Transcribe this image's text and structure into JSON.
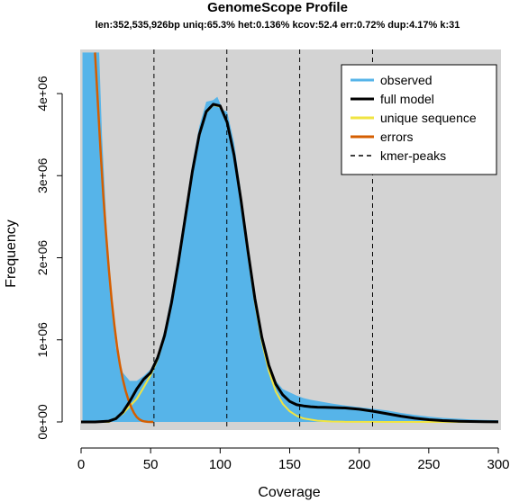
{
  "chart_data": {
    "type": "area",
    "title": "GenomeScope Profile",
    "subtitle": "len:352,535,926bp uniq:65.3%  het:0.136% kcov:52.4 err:0.72%  dup:4.17%  k:31",
    "xlabel": "Coverage",
    "ylabel": "Frequency",
    "xlim": [
      0,
      300
    ],
    "ylim": [
      0,
      4500000
    ],
    "x_ticks": [
      0,
      50,
      100,
      150,
      200,
      250,
      300
    ],
    "x_tick_labels": [
      "0",
      "50",
      "100",
      "150",
      "200",
      "250",
      "300"
    ],
    "y_ticks": [
      0,
      1000000,
      2000000,
      3000000,
      4000000
    ],
    "y_tick_labels": [
      "0e+00",
      "1e+06",
      "2e+06",
      "3e+06",
      "4e+06"
    ],
    "background_color": "#d3d3d3",
    "kmer_peaks": [
      52.4,
      104.8,
      157.2,
      209.6
    ],
    "legend": {
      "placement": "top-right",
      "entries": [
        {
          "label": "observed",
          "color": "#56b4e9",
          "style": "solid"
        },
        {
          "label": "full model",
          "color": "#000000",
          "style": "solid"
        },
        {
          "label": "unique sequence",
          "color": "#f0e442",
          "style": "solid"
        },
        {
          "label": "errors",
          "color": "#d55e00",
          "style": "solid"
        },
        {
          "label": "kmer-peaks",
          "color": "#000000",
          "style": "dashed"
        }
      ]
    },
    "series": [
      {
        "name": "observed",
        "color": "#56b4e9",
        "x": [
          1,
          3,
          5,
          7,
          9,
          11,
          13,
          15,
          20,
          25,
          30,
          35,
          40,
          45,
          50,
          55,
          60,
          65,
          70,
          75,
          80,
          85,
          90,
          95,
          98,
          100,
          102,
          105,
          110,
          115,
          120,
          125,
          130,
          135,
          140,
          145,
          150,
          155,
          160,
          165,
          170,
          175,
          180,
          190,
          200,
          210,
          220,
          230,
          240,
          250,
          260,
          270,
          280,
          290,
          300
        ],
        "y": [
          4500000,
          4500000,
          4500000,
          4500000,
          4500000,
          4500000,
          4500000,
          3500000,
          1800000,
          900000,
          600000,
          500000,
          500000,
          560000,
          640000,
          820000,
          1120000,
          1550000,
          2050000,
          2600000,
          3150000,
          3600000,
          3900000,
          3920000,
          3960000,
          3880000,
          3800000,
          3780000,
          3400000,
          2800000,
          2100000,
          1450000,
          1000000,
          720000,
          500000,
          400000,
          360000,
          320000,
          290000,
          270000,
          255000,
          240000,
          225000,
          200000,
          180000,
          160000,
          140000,
          110000,
          85000,
          65000,
          50000,
          40000,
          30000,
          25000,
          20000
        ]
      },
      {
        "name": "full model",
        "color": "#000000",
        "x": [
          0,
          10,
          20,
          25,
          30,
          35,
          40,
          45,
          50,
          55,
          60,
          65,
          70,
          75,
          80,
          85,
          90,
          95,
          100,
          105,
          110,
          115,
          120,
          125,
          130,
          135,
          140,
          145,
          150,
          155,
          160,
          165,
          170,
          175,
          180,
          190,
          200,
          210,
          220,
          230,
          240,
          250,
          260,
          270,
          280,
          290,
          300
        ],
        "y": [
          0,
          0,
          10000,
          40000,
          120000,
          250000,
          400000,
          520000,
          600000,
          780000,
          1050000,
          1450000,
          1950000,
          2500000,
          3050000,
          3500000,
          3780000,
          3870000,
          3850000,
          3650000,
          3250000,
          2700000,
          2080000,
          1500000,
          1030000,
          690000,
          460000,
          330000,
          250000,
          210000,
          195000,
          185000,
          180000,
          178000,
          175000,
          170000,
          155000,
          130000,
          100000,
          70000,
          45000,
          28000,
          16000,
          9000,
          5000,
          2500,
          1500
        ]
      },
      {
        "name": "unique sequence",
        "color": "#f0e442",
        "x": [
          0,
          20,
          30,
          40,
          45,
          50,
          55,
          60,
          65,
          70,
          75,
          80,
          85,
          90,
          95,
          100,
          105,
          110,
          115,
          120,
          125,
          130,
          135,
          140,
          145,
          150,
          155,
          160,
          170,
          180,
          190,
          200,
          220,
          240,
          260,
          280,
          300
        ],
        "y": [
          0,
          0,
          100000,
          280000,
          420000,
          570000,
          760000,
          1040000,
          1440000,
          1940000,
          2490000,
          3040000,
          3490000,
          3770000,
          3860000,
          3840000,
          3640000,
          3240000,
          2680000,
          2050000,
          1460000,
          980000,
          620000,
          370000,
          220000,
          130000,
          75000,
          42000,
          15000,
          5000,
          2000,
          1000,
          0,
          0,
          0,
          0,
          0
        ]
      },
      {
        "name": "errors",
        "color": "#d55e00",
        "x": [
          10,
          12,
          14,
          16,
          18,
          20,
          22,
          24,
          26,
          28,
          30,
          32,
          34,
          36,
          38,
          40,
          42,
          44,
          46,
          48,
          50,
          52
        ],
        "y": [
          4500000,
          3900000,
          3300000,
          2750000,
          2280000,
          1850000,
          1480000,
          1170000,
          900000,
          690000,
          520000,
          380000,
          270000,
          180000,
          110000,
          60000,
          30000,
          12000,
          5000,
          1000,
          0,
          0
        ]
      }
    ]
  }
}
